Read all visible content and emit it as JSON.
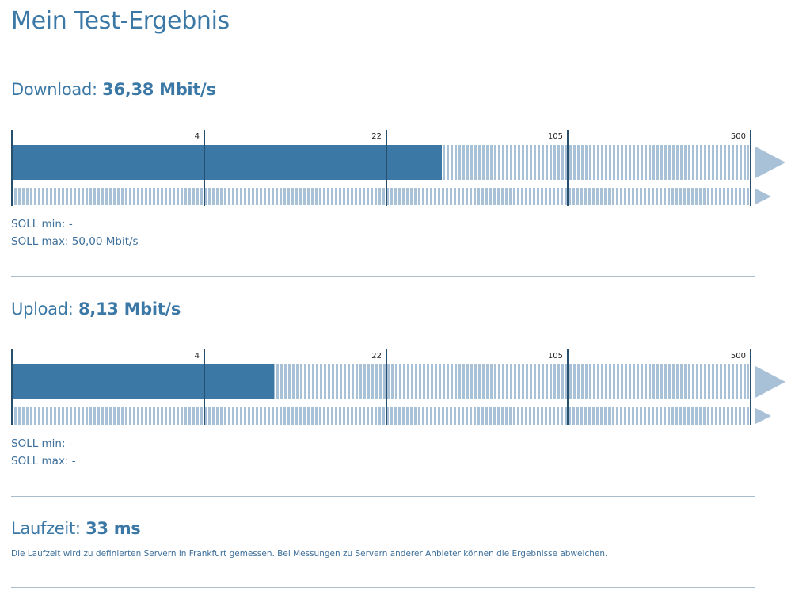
{
  "page": {
    "title": "Mein Test-Ergebnis"
  },
  "download": {
    "label": "Download:",
    "value": "36,38 Mbit/s",
    "measured_mbit": 36.38,
    "fill_fraction": 0.584,
    "ticks": [
      "4",
      "22",
      "105",
      "500"
    ],
    "soll_min_label": "SOLL min:",
    "soll_min_value": "-",
    "soll_max_label": "SOLL max:",
    "soll_max_value": "50,00 Mbit/s"
  },
  "upload": {
    "label": "Upload:",
    "value": "8,13 Mbit/s",
    "measured_mbit": 8.13,
    "fill_fraction": 0.356,
    "ticks": [
      "4",
      "22",
      "105",
      "500"
    ],
    "soll_min_label": "SOLL min:",
    "soll_min_value": "-",
    "soll_max_label": "SOLL max:",
    "soll_max_value": "-"
  },
  "latency": {
    "label": "Laufzeit:",
    "value": "33 ms",
    "note": "Die Laufzeit wird zu definierten Servern in Frankfurt gemessen. Bei Messungen zu Servern anderer Anbieter können die Ergebnisse abweichen."
  },
  "colors": {
    "accent": "#3b78a6",
    "track": "#a8c1d6",
    "tick": "#27506f",
    "divider": "#a9bccb"
  }
}
